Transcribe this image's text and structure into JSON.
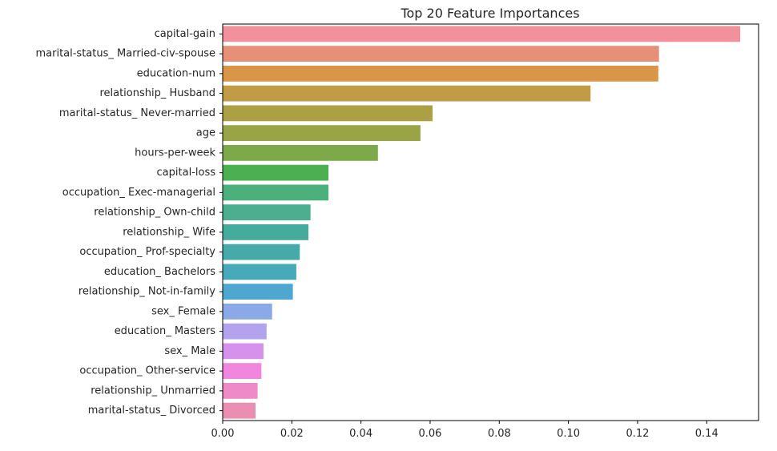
{
  "chart_data": {
    "type": "bar",
    "orientation": "horizontal",
    "title": "Top 20 Feature Importances",
    "xlabel": "",
    "ylabel": "",
    "xlim": [
      0,
      0.155
    ],
    "x_ticks": [
      0.0,
      0.02,
      0.04,
      0.06,
      0.08,
      0.1,
      0.12,
      0.14
    ],
    "x_tick_labels": [
      "0.00",
      "0.02",
      "0.04",
      "0.06",
      "0.08",
      "0.10",
      "0.12",
      "0.14"
    ],
    "grid": false,
    "categories": [
      "capital-gain",
      "marital-status_ Married-civ-spouse",
      "education-num",
      "relationship_ Husband",
      "marital-status_ Never-married",
      "age",
      "hours-per-week",
      "capital-loss",
      "occupation_ Exec-managerial",
      "relationship_ Own-child",
      "relationship_ Wife",
      "occupation_ Prof-specialty",
      "education_ Bachelors",
      "relationship_ Not-in-family",
      "sex_ Female",
      "education_ Masters",
      "sex_ Male",
      "occupation_ Other-service",
      "relationship_ Unmarried",
      "marital-status_ Divorced"
    ],
    "values": [
      0.1497,
      0.1262,
      0.126,
      0.1064,
      0.0607,
      0.0572,
      0.0449,
      0.0306,
      0.0306,
      0.0254,
      0.0248,
      0.0223,
      0.0213,
      0.0203,
      0.0143,
      0.0127,
      0.0118,
      0.0112,
      0.0101,
      0.0095
    ],
    "colors": [
      "#f0919c",
      "#e88f77",
      "#d99648",
      "#c29c45",
      "#aca044",
      "#99a545",
      "#7daa48",
      "#4cb052",
      "#4bb07c",
      "#4aae8f",
      "#45ab9c",
      "#46aaab",
      "#48a9b8",
      "#4ea7d1",
      "#8ba9e9",
      "#b3a3ef",
      "#d691ec",
      "#f285dd",
      "#ee8bc6",
      "#eb8fb2"
    ]
  }
}
